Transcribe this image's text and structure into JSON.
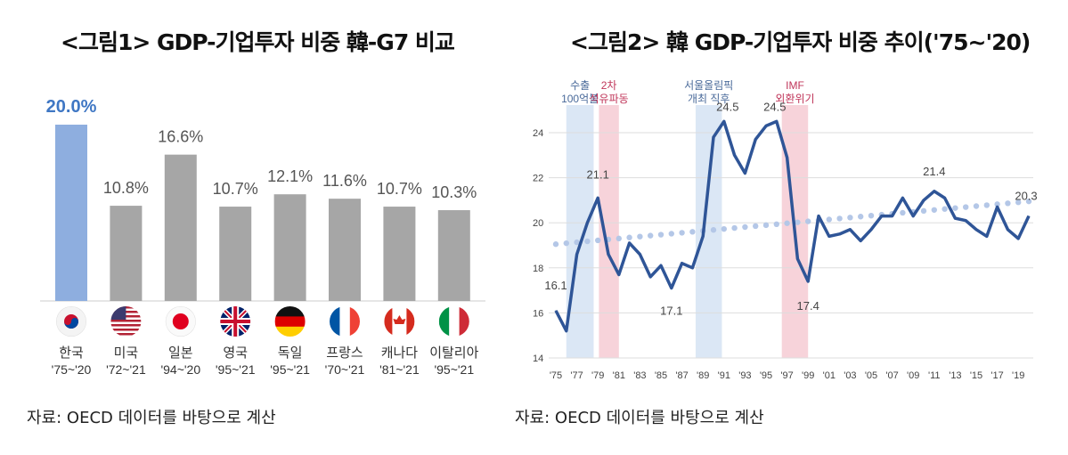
{
  "chart_data": [
    {
      "type": "bar",
      "title": "<그림1> GDP-기업투자 비중 韓-G7 비교",
      "source": "자료: OECD 데이터를 바탕으로 계산",
      "categories": [
        "한국",
        "미국",
        "일본",
        "영국",
        "독일",
        "프랑스",
        "캐나다",
        "이탈리아"
      ],
      "periods": [
        "'75~'20",
        "'72~'21",
        "'94~'20",
        "'95~'21",
        "'95~'21",
        "'70~'21",
        "'81~'21",
        "'95~'21"
      ],
      "flags": [
        "korea-flag-icon",
        "usa-flag-icon",
        "japan-flag-icon",
        "uk-flag-icon",
        "germany-flag-icon",
        "france-flag-icon",
        "canada-flag-icon",
        "italy-flag-icon"
      ],
      "values": [
        20.0,
        10.8,
        16.6,
        10.7,
        12.1,
        11.6,
        10.7,
        10.3
      ],
      "labels": [
        "20.0%",
        "10.8%",
        "16.6%",
        "10.7%",
        "12.1%",
        "11.6%",
        "10.7%",
        "10.3%"
      ],
      "colors": {
        "highlight": "#8eaedf",
        "highlight_label": "#3f77c4",
        "default": "#a6a6a6"
      },
      "ylim": [
        0,
        20
      ]
    },
    {
      "type": "line",
      "title": "<그림2> 韓 GDP-기업투자 비중 추이('75~'20)",
      "source": "자료: OECD 데이터를 바탕으로 계산",
      "x": [
        1975,
        1976,
        1977,
        1978,
        1979,
        1980,
        1981,
        1982,
        1983,
        1984,
        1985,
        1986,
        1987,
        1988,
        1989,
        1990,
        1991,
        1992,
        1993,
        1994,
        1995,
        1996,
        1997,
        1998,
        1999,
        2000,
        2001,
        2002,
        2003,
        2004,
        2005,
        2006,
        2007,
        2008,
        2009,
        2010,
        2011,
        2012,
        2013,
        2014,
        2015,
        2016,
        2017,
        2018,
        2019,
        2020
      ],
      "y": [
        16.1,
        15.2,
        18.6,
        20.0,
        21.1,
        18.6,
        17.7,
        19.1,
        18.6,
        17.6,
        18.1,
        17.1,
        18.2,
        18.0,
        19.4,
        23.8,
        24.5,
        23.0,
        22.2,
        23.7,
        24.3,
        24.5,
        22.9,
        18.4,
        17.4,
        20.3,
        19.4,
        19.5,
        19.7,
        19.2,
        19.7,
        20.3,
        20.3,
        21.1,
        20.3,
        21.0,
        21.4,
        21.1,
        20.2,
        20.1,
        19.7,
        19.4,
        20.7,
        19.7,
        19.3,
        20.3
      ],
      "trend": {
        "start": [
          1975,
          19.05
        ],
        "end": [
          2020,
          20.95
        ],
        "style": "dotted"
      },
      "data_labels": [
        {
          "x": 1975,
          "text": "16.1"
        },
        {
          "x": 1979,
          "text": "21.1"
        },
        {
          "x": 1986,
          "text": "17.1"
        },
        {
          "x": 1991,
          "text": "24.5"
        },
        {
          "x": 1996,
          "text": "24.5"
        },
        {
          "x": 1999,
          "text": "17.4"
        },
        {
          "x": 2011,
          "text": "21.4"
        },
        {
          "x": 2020,
          "text": "20.3"
        }
      ],
      "shaded_periods": [
        {
          "from": 1976,
          "to": 1978.6,
          "color": "#dbe7f5",
          "label": [
            "수출",
            "100억불"
          ],
          "label_color": "#4a6a9a"
        },
        {
          "from": 1979.1,
          "to": 1981,
          "color": "#f7d3da",
          "label": [
            "2차",
            "석유파동"
          ],
          "label_color": "#c0365a"
        },
        {
          "from": 1988.3,
          "to": 1990.8,
          "color": "#dbe7f5",
          "label": [
            "서울올림픽",
            "개최 직후"
          ],
          "label_color": "#4a6a9a"
        },
        {
          "from": 1996.5,
          "to": 1999,
          "color": "#f7d3da",
          "label": [
            "IMF",
            "외환위기"
          ],
          "label_color": "#c0365a"
        }
      ],
      "ylim": [
        14,
        24
      ],
      "yticks": [
        "14",
        "16",
        "18",
        "20",
        "22",
        "24"
      ],
      "xticks": [
        "'75",
        "'77",
        "'79",
        "'81",
        "'83",
        "'85",
        "'87",
        "'89",
        "'91",
        "'93",
        "'95",
        "'97",
        "'99",
        "'01",
        "'03",
        "'05",
        "'07",
        "'09",
        "'11",
        "'13",
        "'15",
        "'17",
        "'19"
      ],
      "grid": true,
      "colors": {
        "line": "#2f5597",
        "trend": "#b4c7e7"
      }
    }
  ]
}
